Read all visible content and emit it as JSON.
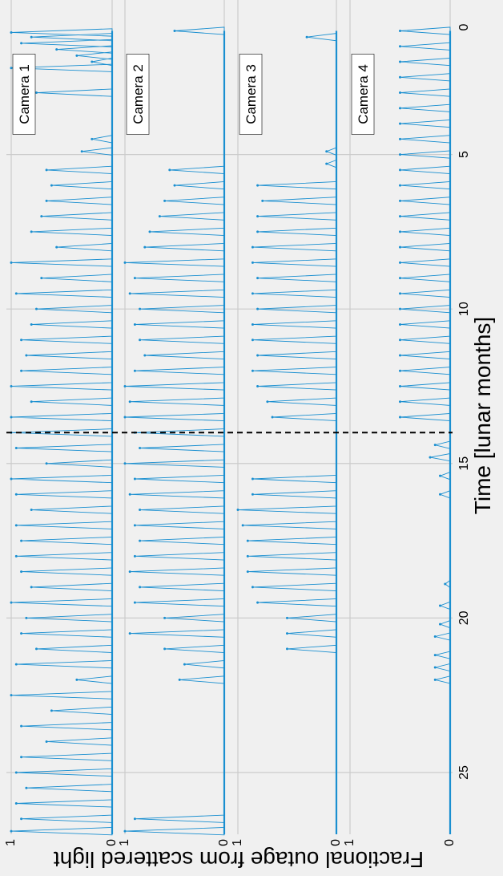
{
  "chart_data": {
    "type": "line",
    "xlabel": "Time [lunar months]",
    "ylabel": "Fractional outage from scattered light",
    "xlim": [
      0,
      27
    ],
    "xticks": [
      5,
      10,
      15,
      20,
      25
    ],
    "xtick_labels": [
      "5",
      "10",
      "15",
      "20",
      "25"
    ],
    "xtick_zero": "0",
    "ylim": [
      0,
      1
    ],
    "yticks": [
      0,
      1
    ],
    "ytick_labels": [
      "0",
      "1"
    ],
    "grid": true,
    "line_color": "#1a8fd0",
    "vline": {
      "x": 14.0,
      "style": "dashed",
      "color": "#000000"
    },
    "panels": [
      {
        "name": "Camera 1",
        "spikes": [
          [
            1.05,
            1.0
          ],
          [
            1.2,
            0.8
          ],
          [
            1.4,
            0.9
          ],
          [
            1.6,
            0.55
          ],
          [
            1.8,
            0.35
          ],
          [
            2.0,
            0.2
          ],
          [
            2.2,
            1.0
          ],
          [
            3.0,
            0.75
          ],
          [
            4.5,
            0.2
          ],
          [
            4.9,
            0.3
          ],
          [
            5.5,
            0.65
          ],
          [
            6.0,
            0.6
          ],
          [
            6.5,
            0.65
          ],
          [
            7.0,
            0.7
          ],
          [
            7.5,
            0.8
          ],
          [
            8.0,
            0.55
          ],
          [
            8.5,
            1.0
          ],
          [
            9.0,
            0.7
          ],
          [
            9.5,
            0.95
          ],
          [
            10.0,
            0.75
          ],
          [
            10.5,
            0.8
          ],
          [
            11.0,
            0.9
          ],
          [
            11.5,
            0.85
          ],
          [
            12.0,
            0.9
          ],
          [
            12.5,
            1.0
          ],
          [
            13.0,
            0.8
          ],
          [
            13.5,
            1.0
          ],
          [
            14.0,
            1.0
          ],
          [
            14.5,
            0.95
          ],
          [
            15.0,
            0.65
          ],
          [
            15.5,
            1.0
          ],
          [
            16.0,
            0.95
          ],
          [
            16.5,
            0.8
          ],
          [
            17.0,
            0.95
          ],
          [
            17.5,
            0.9
          ],
          [
            18.0,
            0.95
          ],
          [
            18.5,
            0.9
          ],
          [
            19.0,
            0.8
          ],
          [
            19.5,
            1.0
          ],
          [
            20.0,
            0.85
          ],
          [
            20.5,
            0.9
          ],
          [
            21.0,
            0.75
          ],
          [
            21.5,
            0.95
          ],
          [
            22.0,
            0.35
          ],
          [
            22.5,
            1.0
          ],
          [
            23.0,
            0.6
          ],
          [
            23.5,
            0.9
          ],
          [
            24.0,
            0.65
          ],
          [
            24.5,
            0.9
          ],
          [
            25.0,
            0.95
          ],
          [
            25.5,
            0.85
          ],
          [
            26.0,
            0.95
          ],
          [
            26.5,
            0.9
          ],
          [
            26.9,
            1.0
          ]
        ]
      },
      {
        "name": "Camera 2",
        "spikes": [
          [
            1.0,
            0.5
          ],
          [
            5.5,
            0.55
          ],
          [
            6.0,
            0.5
          ],
          [
            6.5,
            0.6
          ],
          [
            7.0,
            0.65
          ],
          [
            7.5,
            0.75
          ],
          [
            8.0,
            0.8
          ],
          [
            8.5,
            1.0
          ],
          [
            9.0,
            0.9
          ],
          [
            9.5,
            0.95
          ],
          [
            10.0,
            0.85
          ],
          [
            10.5,
            0.9
          ],
          [
            11.0,
            0.85
          ],
          [
            11.5,
            0.8
          ],
          [
            12.0,
            0.9
          ],
          [
            12.5,
            1.0
          ],
          [
            13.0,
            0.95
          ],
          [
            13.5,
            1.0
          ],
          [
            14.0,
            0.9
          ],
          [
            14.5,
            0.85
          ],
          [
            15.0,
            1.0
          ],
          [
            15.5,
            0.9
          ],
          [
            16.0,
            0.95
          ],
          [
            16.5,
            0.85
          ],
          [
            17.0,
            0.9
          ],
          [
            17.5,
            0.85
          ],
          [
            18.0,
            0.9
          ],
          [
            18.5,
            0.95
          ],
          [
            19.0,
            0.85
          ],
          [
            19.5,
            0.9
          ],
          [
            20.0,
            0.6
          ],
          [
            20.5,
            0.95
          ],
          [
            21.0,
            0.6
          ],
          [
            21.5,
            0.4
          ],
          [
            22.0,
            0.45
          ],
          [
            26.5,
            0.9
          ],
          [
            26.9,
            1.0
          ]
        ]
      },
      {
        "name": "Camera 3",
        "spikes": [
          [
            1.2,
            0.3
          ],
          [
            4.9,
            0.1
          ],
          [
            5.3,
            0.1
          ],
          [
            6.0,
            0.8
          ],
          [
            6.5,
            0.75
          ],
          [
            7.0,
            0.8
          ],
          [
            7.5,
            0.8
          ],
          [
            8.0,
            0.85
          ],
          [
            8.5,
            0.85
          ],
          [
            9.0,
            0.8
          ],
          [
            9.5,
            0.85
          ],
          [
            10.0,
            0.8
          ],
          [
            10.5,
            0.85
          ],
          [
            11.0,
            0.85
          ],
          [
            11.5,
            0.8
          ],
          [
            12.0,
            0.85
          ],
          [
            12.5,
            0.8
          ],
          [
            13.0,
            0.7
          ],
          [
            13.5,
            0.65
          ],
          [
            15.5,
            0.85
          ],
          [
            16.0,
            0.85
          ],
          [
            16.5,
            1.0
          ],
          [
            17.0,
            0.95
          ],
          [
            17.5,
            0.9
          ],
          [
            18.0,
            0.9
          ],
          [
            18.5,
            0.9
          ],
          [
            19.0,
            0.85
          ],
          [
            19.5,
            0.8
          ],
          [
            20.0,
            0.5
          ],
          [
            20.5,
            0.5
          ],
          [
            21.0,
            0.5
          ]
        ]
      },
      {
        "name": "Camera 4",
        "spikes": [
          [
            1.0,
            0.5
          ],
          [
            1.5,
            0.5
          ],
          [
            2.0,
            0.5
          ],
          [
            2.5,
            0.5
          ],
          [
            3.0,
            0.5
          ],
          [
            3.5,
            0.5
          ],
          [
            4.0,
            0.5
          ],
          [
            4.5,
            0.5
          ],
          [
            5.0,
            0.5
          ],
          [
            5.5,
            0.5
          ],
          [
            6.0,
            0.5
          ],
          [
            6.5,
            0.5
          ],
          [
            7.0,
            0.5
          ],
          [
            7.5,
            0.5
          ],
          [
            8.0,
            0.5
          ],
          [
            8.5,
            0.5
          ],
          [
            9.0,
            0.5
          ],
          [
            9.5,
            0.5
          ],
          [
            10.0,
            0.5
          ],
          [
            10.5,
            0.5
          ],
          [
            11.0,
            0.5
          ],
          [
            11.5,
            0.5
          ],
          [
            12.0,
            0.5
          ],
          [
            12.5,
            0.5
          ],
          [
            13.0,
            0.5
          ],
          [
            13.5,
            0.5
          ],
          [
            14.4,
            0.15
          ],
          [
            14.8,
            0.2
          ],
          [
            15.4,
            0.1
          ],
          [
            16.0,
            0.1
          ],
          [
            18.9,
            0.05
          ],
          [
            19.6,
            0.1
          ],
          [
            20.2,
            0.1
          ],
          [
            20.6,
            0.15
          ],
          [
            21.2,
            0.15
          ],
          [
            21.6,
            0.15
          ],
          [
            22.0,
            0.15
          ]
        ]
      }
    ]
  }
}
